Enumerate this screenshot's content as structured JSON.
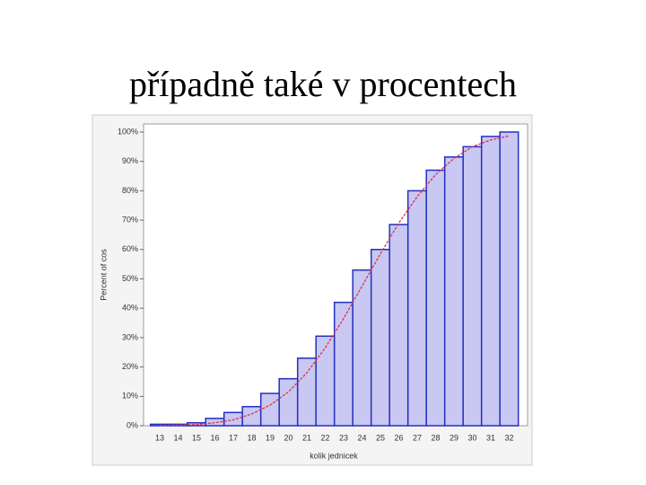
{
  "slide_title": "případně také v procentech",
  "chart_data": {
    "type": "bar",
    "x_label": "kolik jednicek",
    "y_label": "Percent of cos",
    "categories": [
      "13",
      "14",
      "15",
      "16",
      "17",
      "18",
      "19",
      "20",
      "21",
      "22",
      "23",
      "24",
      "25",
      "26",
      "27",
      "28",
      "29",
      "30",
      "31",
      "32"
    ],
    "values": [
      0.5,
      0.5,
      1,
      2.5,
      4.5,
      6.5,
      11,
      16,
      23,
      30.5,
      42,
      53,
      60,
      68.5,
      80,
      87,
      91.5,
      95,
      98.5,
      100
    ],
    "color": "#c8c8f2",
    "edge_color": "#2430c0",
    "curve": {
      "color": "#e0304a",
      "values": [
        0.1,
        0.2,
        0.4,
        1,
        2,
        4,
        7,
        11.5,
        18,
        26.5,
        36.5,
        47.5,
        58.5,
        69,
        78,
        85.5,
        91,
        95,
        97.3,
        98.7
      ]
    },
    "ylim": [
      0,
      100
    ],
    "yticks": [
      {
        "value": 0,
        "label": "0%"
      },
      {
        "value": 10,
        "label": "10%"
      },
      {
        "value": 20,
        "label": "20%"
      },
      {
        "value": 30,
        "label": "30%"
      },
      {
        "value": 40,
        "label": "40%"
      },
      {
        "value": 50,
        "label": "50%"
      },
      {
        "value": 60,
        "label": "60%"
      },
      {
        "value": 70,
        "label": "70%"
      },
      {
        "value": 80,
        "label": "80%"
      },
      {
        "value": 90,
        "label": "90%"
      },
      {
        "value": 100,
        "label": "100%"
      }
    ],
    "grid": false
  }
}
